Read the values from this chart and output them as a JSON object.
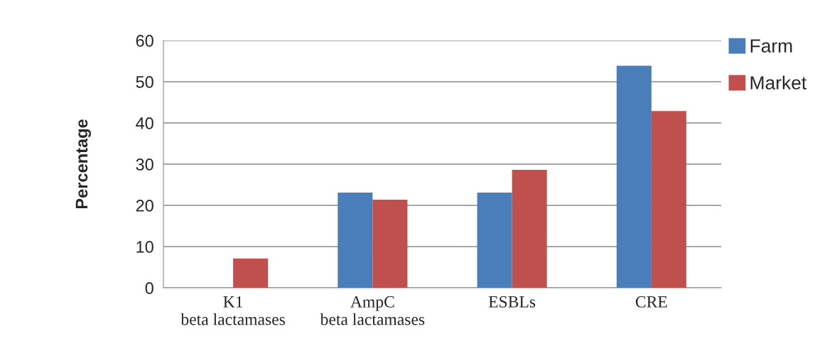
{
  "chart_data": {
    "type": "bar",
    "ylabel": "Percentage",
    "categories": [
      "K1 beta lactamases",
      "AmpC beta lactamases",
      "ESBLs",
      "CRE"
    ],
    "series": [
      {
        "name": "Farm",
        "color": "#4a7ebb",
        "values": [
          0,
          23.1,
          23.1,
          53.9
        ]
      },
      {
        "name": "Market",
        "color": "#c0504d",
        "values": [
          7.1,
          21.4,
          28.6,
          42.9
        ]
      }
    ],
    "ylim": [
      0,
      60
    ],
    "yticks": [
      0,
      10,
      20,
      30,
      40,
      50,
      60
    ],
    "grid": "y",
    "legend": "top right"
  }
}
